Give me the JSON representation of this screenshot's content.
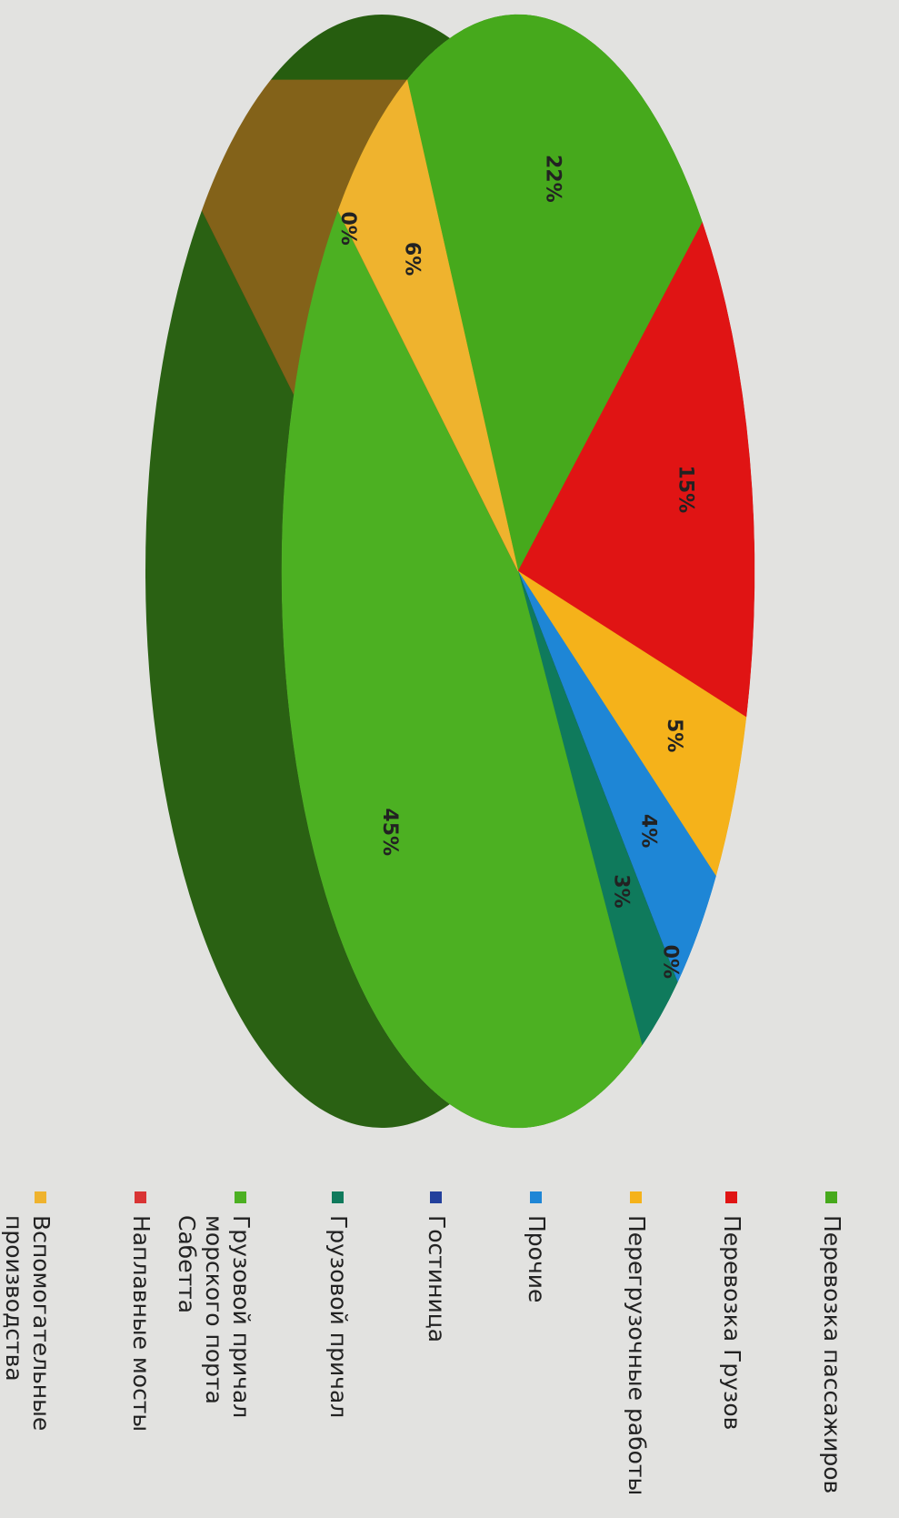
{
  "chart_data": {
    "type": "pie",
    "categories": [
      "Перевозка пассажиров",
      "Перевозка Грузов",
      "Перегрузочные работы",
      "Прочие",
      "Гостиница",
      "Грузовой причал",
      "Грузовой причал морского порта Сабетта",
      "Наплавные мосты",
      "Вспомогательные производства"
    ],
    "values": [
      22,
      15,
      5,
      4,
      0,
      3,
      45,
      0,
      6
    ],
    "value_labels": [
      "22%",
      "15%",
      "5%",
      "4%",
      "0%",
      "3%",
      "45%",
      "0%",
      "6%"
    ],
    "colors": [
      "#46a91c",
      "#e01414",
      "#f5b21a",
      "#1e86d6",
      "#23409c",
      "#0f7a5c",
      "#4cb022",
      "#d93434",
      "#efb32e"
    ],
    "legend": "right"
  }
}
